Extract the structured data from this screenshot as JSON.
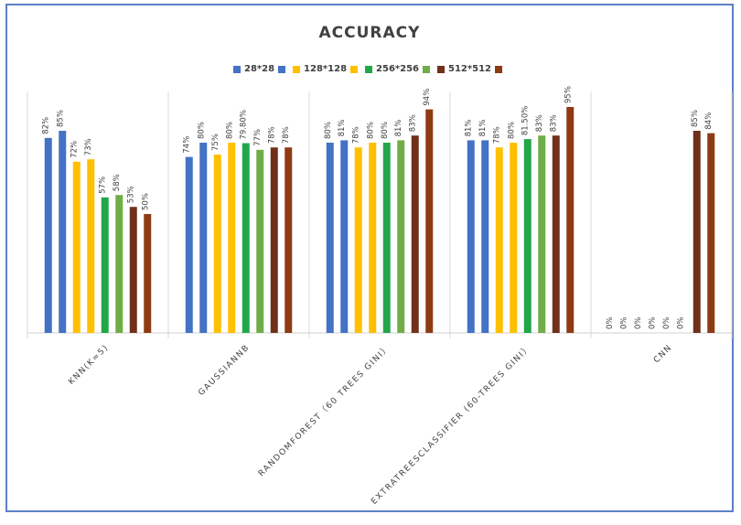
{
  "chart_data": {
    "type": "bar",
    "title": "ACCURACY",
    "categories": [
      "KNN(K=5)",
      "GAUSSIANNB",
      "RANDOMFOREST（60 TREES GINI）",
      "EXTRATREESCLASSIFIER (60-TREES GINI）",
      "CNN"
    ],
    "legend": [
      {
        "label": "28*28",
        "colors": [
          "#4472c4",
          "#4472c4"
        ]
      },
      {
        "label": "128*128",
        "colors": [
          "#ffc000",
          "#ffc000"
        ]
      },
      {
        "label": "256*256",
        "colors": [
          "#22a64a",
          "#70ad47"
        ]
      },
      {
        "label": "512*512",
        "colors": [
          "#70301a",
          "#8e3b14"
        ]
      }
    ],
    "bar_colors": [
      "#4472c4",
      "#4472c4",
      "#ffc000",
      "#ffc000",
      "#22a64a",
      "#70ad47",
      "#70301a",
      "#8e3b14"
    ],
    "values": [
      [
        82,
        85,
        72,
        73,
        57,
        58,
        53,
        50
      ],
      [
        74,
        80,
        75,
        80,
        79.8,
        77,
        78,
        78
      ],
      [
        80,
        81,
        78,
        80,
        80,
        81,
        83,
        94
      ],
      [
        81,
        81,
        78,
        80,
        81.5,
        83,
        83,
        95
      ],
      [
        0,
        0,
        0,
        0,
        0,
        0,
        85,
        84
      ]
    ],
    "value_labels": [
      [
        "82%",
        "85%",
        "72%",
        "73%",
        "57%",
        "58%",
        "53%",
        "50%"
      ],
      [
        "74%",
        "80%",
        "75%",
        "80%",
        "79.80%",
        "77%",
        "78%",
        "78%"
      ],
      [
        "80%",
        "81%",
        "78%",
        "80%",
        "80%",
        "81%",
        "83%",
        "94%"
      ],
      [
        "81%",
        "81%",
        "78%",
        "80%",
        "81.50%",
        "83%",
        "83%",
        "95%"
      ],
      [
        "0%",
        "0%",
        "0%",
        "0%",
        "0%",
        "0%",
        "85%",
        "84%"
      ]
    ],
    "ylim": [
      0,
      100
    ],
    "grid": false,
    "legend_position": "top"
  }
}
